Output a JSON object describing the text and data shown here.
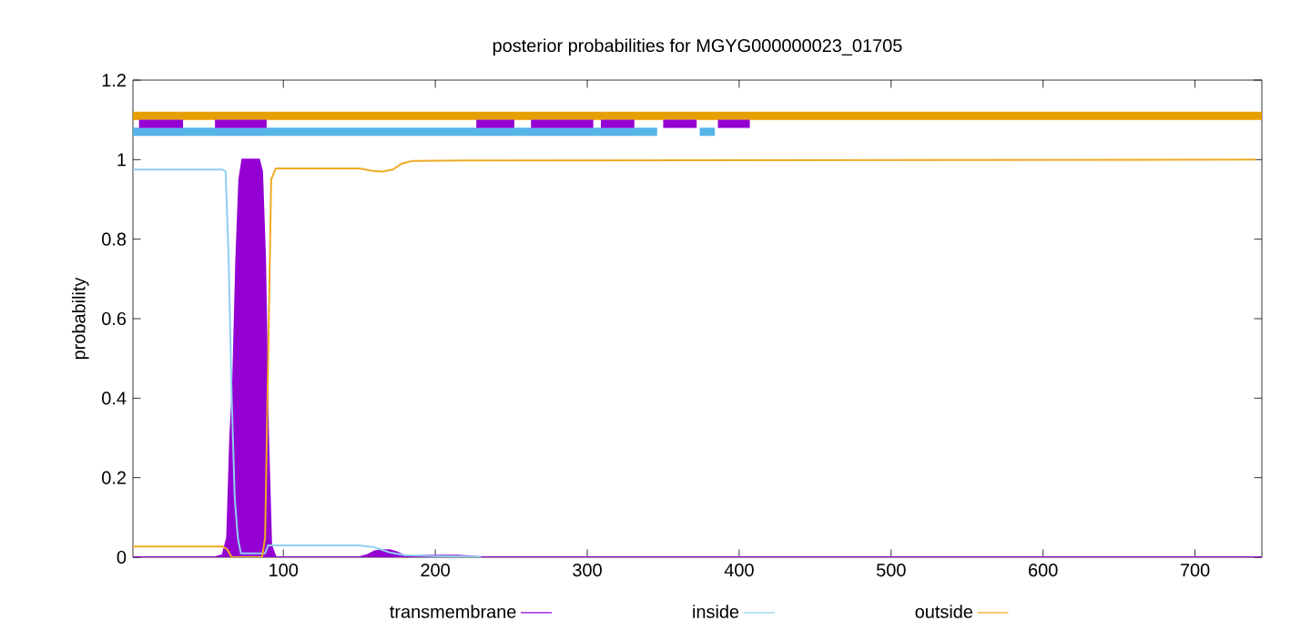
{
  "chart_data": {
    "type": "line",
    "title": "posterior probabilities for MGYG000000023_01705",
    "ylabel": "probability",
    "xlim": [
      1,
      744
    ],
    "xticks": [
      100,
      200,
      300,
      400,
      500,
      600,
      700
    ],
    "ylim": [
      0,
      1.2
    ],
    "yticks": [
      0,
      0.2,
      0.4,
      0.6,
      0.8,
      1,
      1.2
    ],
    "legend": "bottom",
    "marker": "none",
    "grid": false,
    "series": [
      {
        "name": "transmembrane",
        "type": "area",
        "color": "#9400d3",
        "x": [
          1,
          55,
          60,
          63,
          65,
          67,
          69,
          71,
          73,
          75,
          78,
          84,
          86,
          88,
          90,
          92,
          95,
          150,
          155,
          160,
          165,
          170,
          175,
          180,
          200,
          215,
          230,
          240,
          744
        ],
        "values": [
          0,
          0,
          0.005,
          0.05,
          0.3,
          0.45,
          0.75,
          0.95,
          1,
          1,
          1,
          1,
          0.97,
          0.75,
          0.3,
          0.03,
          0,
          0,
          0.005,
          0.015,
          0.018,
          0.018,
          0.012,
          0.003,
          0.004,
          0.004,
          0,
          0,
          0
        ]
      },
      {
        "name": "inside",
        "color": "#8fd0f0",
        "x": [
          1,
          60,
          62,
          64,
          66,
          68,
          70,
          72,
          88,
          90,
          92,
          150,
          160,
          170,
          180,
          200,
          230
        ],
        "values": [
          0.975,
          0.975,
          0.97,
          0.75,
          0.4,
          0.15,
          0.05,
          0.01,
          0.01,
          0.03,
          0.03,
          0.03,
          0.025,
          0.012,
          0.005,
          0.003,
          0.001
        ]
      },
      {
        "name": "outside",
        "color": "#eeaa22",
        "x": [
          1,
          60,
          63,
          66,
          86,
          88,
          90,
          92,
          95,
          150,
          158,
          165,
          172,
          178,
          185,
          230,
          740
        ],
        "values": [
          0.027,
          0.027,
          0.02,
          0,
          0,
          0.05,
          0.5,
          0.95,
          0.978,
          0.978,
          0.972,
          0.97,
          0.975,
          0.99,
          0.997,
          0.998,
          1
        ]
      },
      {
        "color": "#e69f00",
        "x": [
          1,
          744
        ],
        "values": [
          1.11,
          1.11
        ]
      },
      {
        "color": "#56b4e9",
        "x": [
          1,
          346,
          348,
          374,
          384
        ],
        "values": [
          1.07,
          1.07,
          null,
          1.07,
          1.07
        ]
      },
      {
        "color": "#9400d3",
        "x": [
          5,
          34,
          35,
          55,
          89,
          90,
          227,
          252,
          253,
          263,
          304,
          305,
          309,
          331,
          332,
          350,
          372,
          373,
          386,
          407
        ],
        "values": [
          1.09,
          1.09,
          null,
          1.09,
          1.09,
          null,
          1.09,
          1.09,
          null,
          1.09,
          1.09,
          null,
          1.09,
          1.09,
          null,
          1.09,
          1.09,
          null,
          1.09,
          1.09
        ]
      }
    ]
  }
}
